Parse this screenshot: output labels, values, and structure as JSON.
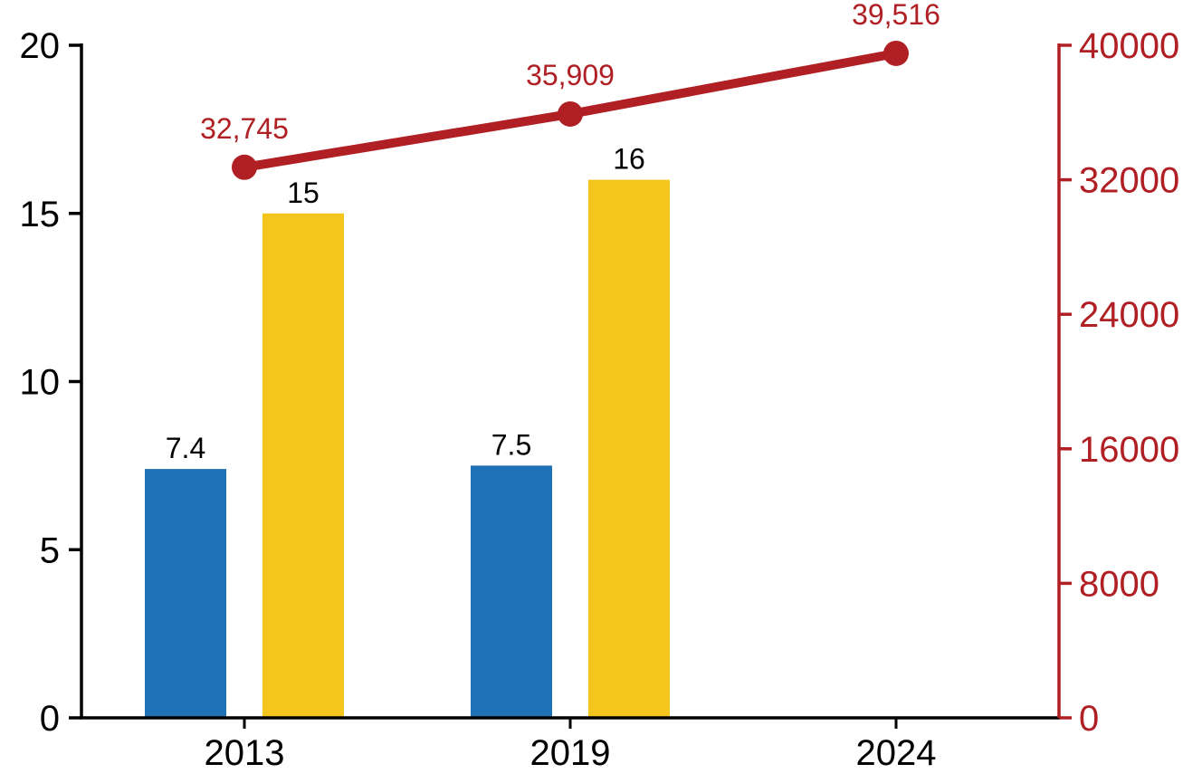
{
  "chart_data": {
    "type": "combo-bar-line",
    "title": "",
    "background": "#FFFFFF",
    "grid": false,
    "legend": "none",
    "categories": [
      "2013",
      "2019",
      "2024"
    ],
    "series": [
      {
        "name": "blue-bar-series",
        "type": "bar",
        "axis": "left",
        "color": "#1F72B5",
        "values": [
          7.4,
          7.5,
          null
        ],
        "labels": [
          "7.4",
          "7.5",
          null
        ]
      },
      {
        "name": "yellow-bar-series",
        "type": "bar",
        "axis": "left",
        "color": "#F3C51D",
        "values": [
          15,
          16,
          null
        ],
        "labels": [
          "15",
          "16",
          null
        ]
      },
      {
        "name": "red-line-series",
        "type": "line",
        "axis": "right",
        "color": "#B01F24",
        "values": [
          32745,
          35909,
          39516
        ],
        "labels": [
          "32,745",
          "35,909",
          "39,516"
        ]
      }
    ],
    "left_axis": {
      "min": 0,
      "max": 20,
      "ticks": [
        0,
        5,
        10,
        15,
        20
      ],
      "tick_labels": [
        "0",
        "5",
        "10",
        "15",
        "20"
      ],
      "color": "#000000"
    },
    "right_axis": {
      "min": 0,
      "max": 40000,
      "ticks": [
        0,
        8000,
        16000,
        24000,
        32000,
        40000
      ],
      "tick_labels": [
        "0",
        "8000",
        "16000",
        "24000",
        "32000",
        "40000"
      ],
      "color": "#B01F24"
    },
    "x_axis": {
      "color": "#000000"
    }
  }
}
